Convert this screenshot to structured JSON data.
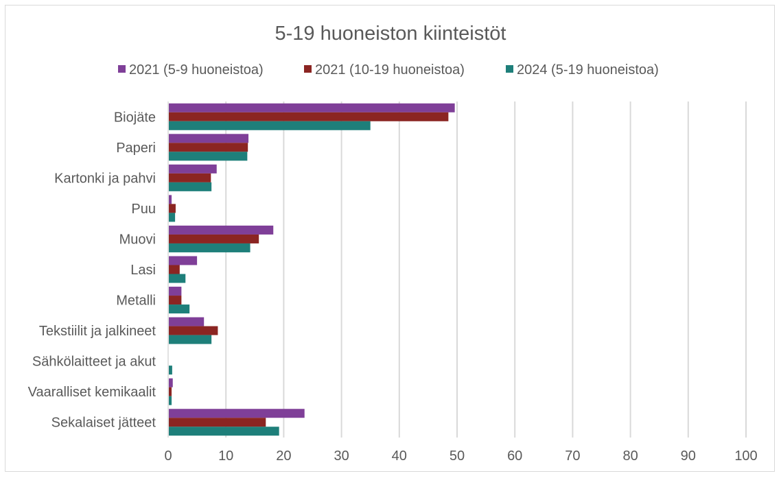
{
  "chart_data": {
    "type": "bar",
    "orientation": "horizontal",
    "title": "5-19 huoneiston kiinteistöt",
    "xlabel": "",
    "ylabel": "",
    "xlim": [
      0,
      100
    ],
    "x_ticks": [
      0,
      10,
      20,
      30,
      40,
      50,
      60,
      70,
      80,
      90,
      100
    ],
    "grid": "vertical",
    "legend_position": "top",
    "categories": [
      "Biojäte",
      "Paperi",
      "Kartonki ja pahvi",
      "Puu",
      "Muovi",
      "Lasi",
      "Metalli",
      "Tekstiilit ja jalkineet",
      "Sähkölaitteet ja akut",
      "Vaaralliset kemikaalit",
      "Sekalaiset jätteet"
    ],
    "series": [
      {
        "name": "2021 (5-9 huoneistoa)",
        "color": "#7f3f98",
        "values": [
          49.6,
          13.9,
          8.4,
          0.6,
          18.2,
          5.0,
          2.3,
          6.2,
          0,
          0.8,
          23.6
        ]
      },
      {
        "name": "2021 (10-19 huoneistoa)",
        "color": "#8b2522",
        "values": [
          48.5,
          13.8,
          7.4,
          1.3,
          15.7,
          2.0,
          2.3,
          8.6,
          0,
          0.6,
          16.9
        ]
      },
      {
        "name": "2024 (5-19 huoneistoa)",
        "color": "#1e7f7a",
        "values": [
          35.0,
          13.7,
          7.5,
          1.2,
          14.2,
          3.0,
          3.7,
          7.5,
          0.7,
          0.6,
          19.2
        ]
      }
    ]
  }
}
